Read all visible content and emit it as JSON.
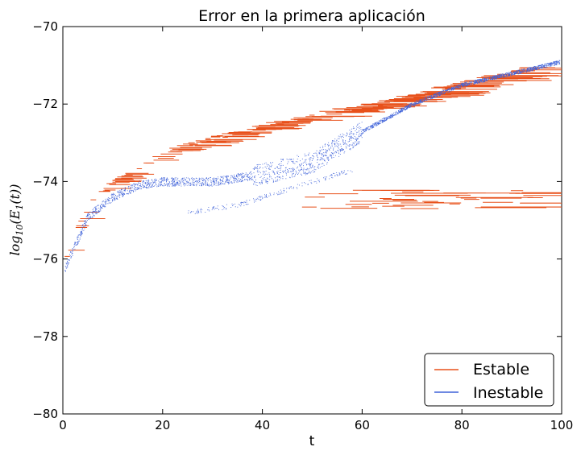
{
  "chart_data": {
    "type": "scatter",
    "title": "Error en la primera aplicación",
    "xlabel": "t",
    "ylabel": "log_{10}(E_1(t))",
    "ylabel_parts": {
      "base": "log",
      "sub1": "10",
      "mid": "(E",
      "sub2": "1",
      "end": "(t))"
    },
    "xlim": [
      0,
      100
    ],
    "ylim": [
      -80,
      -70
    ],
    "xticks": [
      0,
      20,
      40,
      60,
      80,
      100
    ],
    "yticks": [
      -80,
      -78,
      -76,
      -74,
      -72,
      -70
    ],
    "xtick_labels": [
      "0",
      "20",
      "40",
      "60",
      "80",
      "100"
    ],
    "ytick_labels": [
      "−80",
      "−78",
      "−76",
      "−74",
      "−72",
      "−70"
    ],
    "grid": false,
    "legend_position": "bottom-right",
    "series": [
      {
        "name": "Estable",
        "color": "#e8501a",
        "marker": "horizontal-dash",
        "trend": [
          [
            0.5,
            -76.0
          ],
          [
            2,
            -75.3
          ],
          [
            5,
            -74.6
          ],
          [
            10,
            -74.0
          ],
          [
            20,
            -73.3
          ],
          [
            30,
            -72.9
          ],
          [
            40,
            -72.6
          ],
          [
            50,
            -72.3
          ],
          [
            60,
            -72.1
          ],
          [
            70,
            -71.8
          ],
          [
            80,
            -71.5
          ],
          [
            90,
            -71.2
          ],
          [
            100,
            -70.9
          ]
        ],
        "lower_band": {
          "y": [
            -74.7,
            -74.2
          ],
          "x_range": [
            45,
            100
          ]
        }
      },
      {
        "name": "Inestable",
        "color": "#3f62d9",
        "marker": "point",
        "upper_trend": [
          [
            0.5,
            -76.2
          ],
          [
            5,
            -74.9
          ],
          [
            10,
            -74.4
          ],
          [
            15,
            -74.1
          ],
          [
            20,
            -74.0
          ],
          [
            30,
            -74.0
          ],
          [
            40,
            -73.8
          ],
          [
            50,
            -73.5
          ],
          [
            55,
            -73.1
          ],
          [
            60,
            -72.7
          ],
          [
            70,
            -72.0
          ],
          [
            80,
            -71.5
          ],
          [
            90,
            -71.2
          ],
          [
            100,
            -70.9
          ]
        ],
        "lower_trend": [
          [
            25,
            -74.8
          ],
          [
            35,
            -74.6
          ],
          [
            45,
            -74.2
          ],
          [
            55,
            -73.8
          ],
          [
            58,
            -73.7
          ]
        ]
      }
    ]
  }
}
